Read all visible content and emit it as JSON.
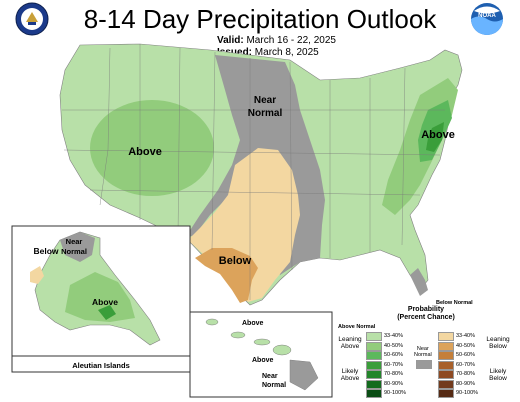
{
  "title": "8-14 Day Precipitation Outlook",
  "valid_label": "Valid:",
  "valid_value": "March 16 - 22, 2025",
  "issued_label": "Issued:",
  "issued_value": "March 8, 2025",
  "logos": {
    "left": "department-of-commerce-seal",
    "right": "noaa-logo",
    "right_text": "NOAA"
  },
  "regions": {
    "west_above": "Above",
    "plains_near_normal_1": "Near",
    "plains_near_normal_2": "Normal",
    "east_above": "Above",
    "texas_below": "Below",
    "alaska_below": "Below",
    "alaska_near_1": "Near",
    "alaska_near_2": "Normal",
    "alaska_above": "Above",
    "aleutian_islands": "Aleutian Islands",
    "hawaii_above_1": "Above",
    "hawaii_above_2": "Above",
    "hawaii_near_1": "Near",
    "hawaii_near_2": "Normal"
  },
  "legend": {
    "title_1": "Probability",
    "title_2": "(Percent Chance)",
    "above_header": "Above Normal",
    "below_header": "Below Normal",
    "near_label_1": "Near",
    "near_label_2": "Normal",
    "above_groups": [
      "Leaning",
      "Above",
      "Likely",
      "Above"
    ],
    "below_groups": [
      "Leaning",
      "Below",
      "Likely",
      "Below"
    ],
    "above_bins": [
      {
        "label": "33-40%",
        "color": "#b8e0a8"
      },
      {
        "label": "40-50%",
        "color": "#92cc7c"
      },
      {
        "label": "50-60%",
        "color": "#5cb85c"
      },
      {
        "label": "60-70%",
        "color": "#3a9e3a"
      },
      {
        "label": "70-80%",
        "color": "#22852a"
      },
      {
        "label": "80-90%",
        "color": "#136b1e"
      },
      {
        "label": "90-100%",
        "color": "#0a4d14"
      }
    ],
    "below_bins": [
      {
        "label": "33-40%",
        "color": "#f3d7a1"
      },
      {
        "label": "40-50%",
        "color": "#dca35b"
      },
      {
        "label": "50-60%",
        "color": "#c47f3a"
      },
      {
        "label": "60-70%",
        "color": "#a8602a"
      },
      {
        "label": "70-80%",
        "color": "#8e4a22"
      },
      {
        "label": "80-90%",
        "color": "#723a1c"
      },
      {
        "label": "90-100%",
        "color": "#552a14"
      }
    ],
    "near_color": "#9a9a9a"
  },
  "colors": {
    "above_light": "#b8e0a8",
    "above_mid": "#92cc7c",
    "above_strong": "#5cb85c",
    "above_darker": "#3a9e3a",
    "below_light": "#f3d7a1",
    "below_mid": "#dca35b",
    "near": "#9a9a9a"
  }
}
